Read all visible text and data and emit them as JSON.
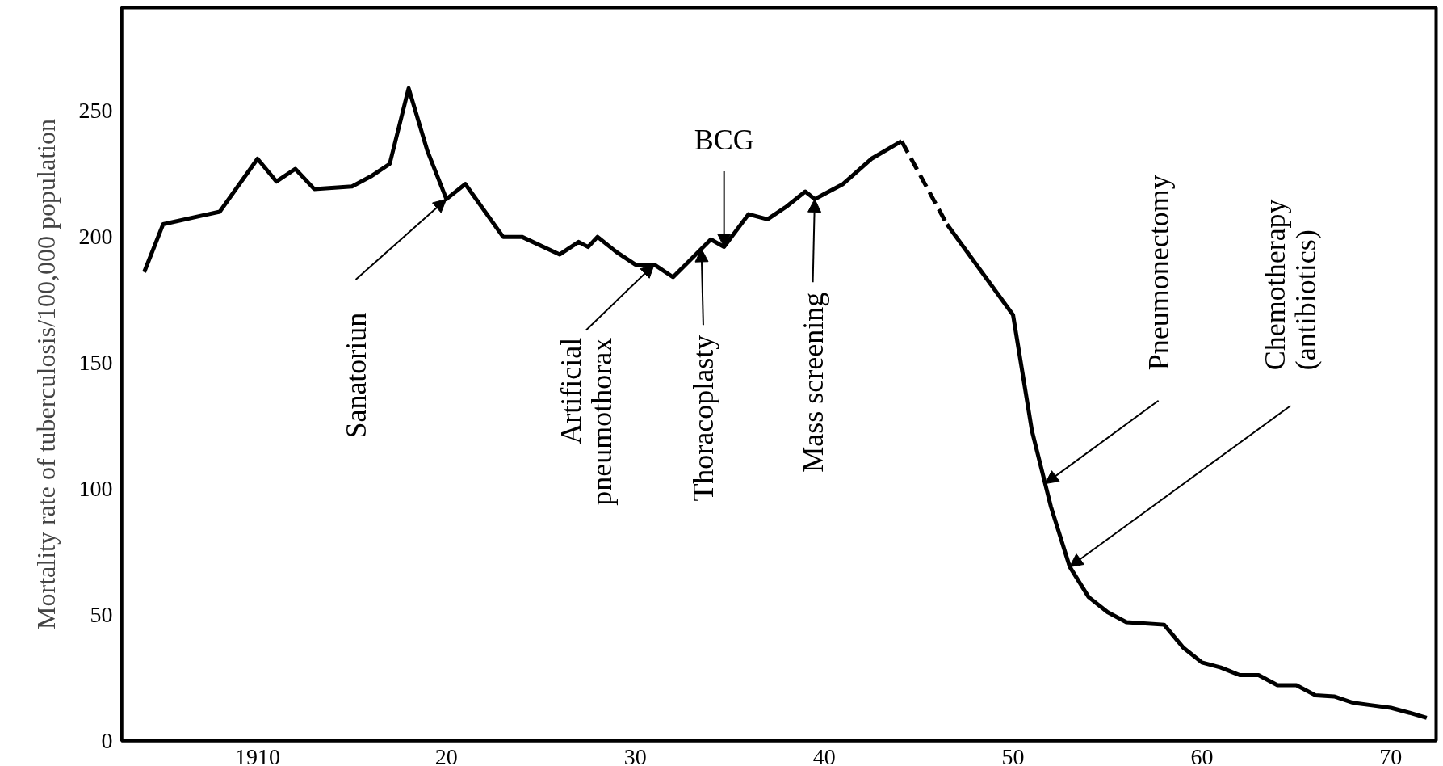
{
  "chart_data": {
    "type": "line",
    "ylabel": "Mortality rate of tuberculosis/100,000 population",
    "xlim": [
      1902.8,
      1972.4
    ],
    "ylim": [
      0,
      291
    ],
    "xticks": [
      {
        "value": 1910,
        "label": "1910"
      },
      {
        "value": 1920,
        "label": "20"
      },
      {
        "value": 1930,
        "label": "30"
      },
      {
        "value": 1940,
        "label": "40"
      },
      {
        "value": 1950,
        "label": "50"
      },
      {
        "value": 1960,
        "label": "60"
      },
      {
        "value": 1970,
        "label": "70"
      }
    ],
    "yticks": [
      0,
      50,
      100,
      150,
      200,
      250
    ],
    "marker": "none",
    "series": [
      {
        "color": "#000000",
        "line_style": "solid",
        "x": [
          1904,
          1905,
          1908,
          1910,
          1911,
          1912,
          1913,
          1915,
          1916,
          1917,
          1918,
          1919,
          1920,
          1921,
          1923,
          1924,
          1926,
          1927,
          1927.5,
          1928,
          1929,
          1930,
          1931,
          1932,
          1934,
          1934.7,
          1936,
          1937,
          1938,
          1939,
          1939.5,
          1941,
          1942.5,
          1944.1
        ],
        "values": [
          186,
          205,
          210,
          231,
          222,
          227,
          219,
          220,
          224,
          229,
          259,
          234,
          215,
          221,
          200,
          200,
          193,
          198,
          196,
          200,
          194,
          189,
          189,
          184,
          199,
          196,
          209,
          207,
          212,
          218,
          215,
          221,
          231,
          238
        ]
      },
      {
        "color": "#000000",
        "line_style": "dashed",
        "x": [
          1944.1,
          1946.5
        ],
        "values": [
          238,
          205
        ]
      },
      {
        "color": "#000000",
        "line_style": "solid",
        "x": [
          1946.5,
          1950,
          1951,
          1952,
          1953,
          1954,
          1955,
          1956,
          1958,
          1959,
          1960,
          1961,
          1962,
          1963,
          1964,
          1965,
          1966,
          1967,
          1968,
          1969,
          1970,
          1971,
          1971.9
        ],
        "values": [
          205,
          169,
          123,
          93,
          69,
          57,
          51,
          47,
          46,
          37,
          31,
          29,
          26,
          26,
          22,
          22,
          18,
          17.5,
          15,
          14,
          13,
          11,
          9
        ]
      }
    ],
    "annotations": [
      {
        "text": "Sanatoriun",
        "x": 1920,
        "y": 215
      },
      {
        "text": "Artificial\npneumothorax",
        "x": 1931,
        "y": 189
      },
      {
        "text": "Thoracoplasty",
        "x": 1933.5,
        "y": 195.25
      },
      {
        "text": "BCG",
        "x": 1934.7,
        "y": 196
      },
      {
        "text": "Mass screening",
        "x": 1939.5,
        "y": 215
      },
      {
        "text": "Pneumonectomy",
        "x": 1951.7,
        "y": 102
      },
      {
        "text": "Chemotherapy\n(antibiotics)",
        "x": 1953,
        "y": 69
      }
    ]
  }
}
